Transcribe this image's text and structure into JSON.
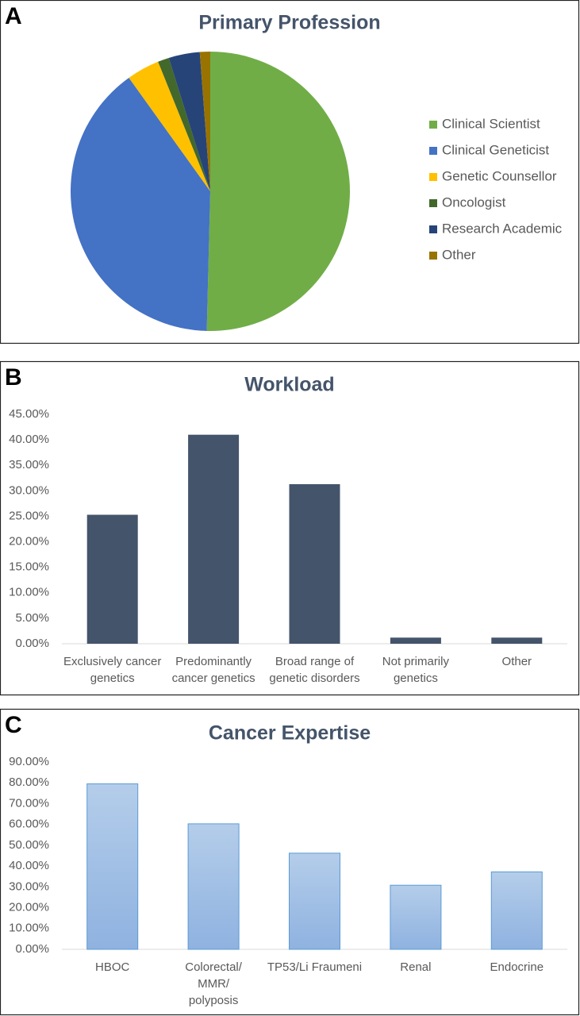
{
  "chart_data": [
    {
      "type": "pie",
      "panel": "A",
      "title": "Primary Profession",
      "categories": [
        "Clinical Scientist",
        "Clinical Geneticist",
        "Genetic Counsellor",
        "Oncologist",
        "Research Academic",
        "Other"
      ],
      "values": [
        50.4,
        39.7,
        3.8,
        1.3,
        3.6,
        1.2
      ],
      "colors": [
        "#70ad47",
        "#4472c4",
        "#ffc000",
        "#43682b",
        "#264478",
        "#997300"
      ],
      "legend": "right"
    },
    {
      "type": "bar",
      "panel": "B",
      "title": "Workload",
      "categories": [
        "Exclusively cancer genetics",
        "Predominantly cancer genetics",
        "Broad range of genetic disorders",
        "Not primarily genetics",
        "Other"
      ],
      "values": [
        25.3,
        41.0,
        31.3,
        1.2,
        1.2
      ],
      "color": "#44546a",
      "ylim": [
        0,
        45
      ],
      "yticks": [
        {
          "value": 0,
          "label": "0.00%"
        },
        {
          "value": 5,
          "label": "5.00%"
        },
        {
          "value": 10,
          "label": "10.00%"
        },
        {
          "value": 15,
          "label": "15.00%"
        },
        {
          "value": 20,
          "label": "20.00%"
        },
        {
          "value": 25,
          "label": "25.00%"
        },
        {
          "value": 30,
          "label": "30.00%"
        },
        {
          "value": 35,
          "label": "35.00%"
        },
        {
          "value": 40,
          "label": "40.00%"
        },
        {
          "value": 45,
          "label": "45.00%"
        }
      ]
    },
    {
      "type": "bar",
      "panel": "C",
      "title": "Cancer Expertise",
      "categories": [
        "HBOC",
        "Colorectal/\nMMR/\npolyposis",
        "TP53/Li Fraumeni",
        "Renal",
        "Endocrine"
      ],
      "values": [
        79.5,
        60.3,
        46.2,
        30.8,
        37.2
      ],
      "color": "#9dc3e6",
      "ylim": [
        0,
        90
      ],
      "yticks": [
        {
          "value": 0,
          "label": "0.00%"
        },
        {
          "value": 10,
          "label": "10.00%"
        },
        {
          "value": 20,
          "label": "20.00%"
        },
        {
          "value": 30,
          "label": "30.00%"
        },
        {
          "value": 40,
          "label": "40.00%"
        },
        {
          "value": 50,
          "label": "50.00%"
        },
        {
          "value": 60,
          "label": "60.00%"
        },
        {
          "value": 70,
          "label": "70.00%"
        },
        {
          "value": 80,
          "label": "80.00%"
        },
        {
          "value": 90,
          "label": "90.00%"
        }
      ]
    }
  ]
}
